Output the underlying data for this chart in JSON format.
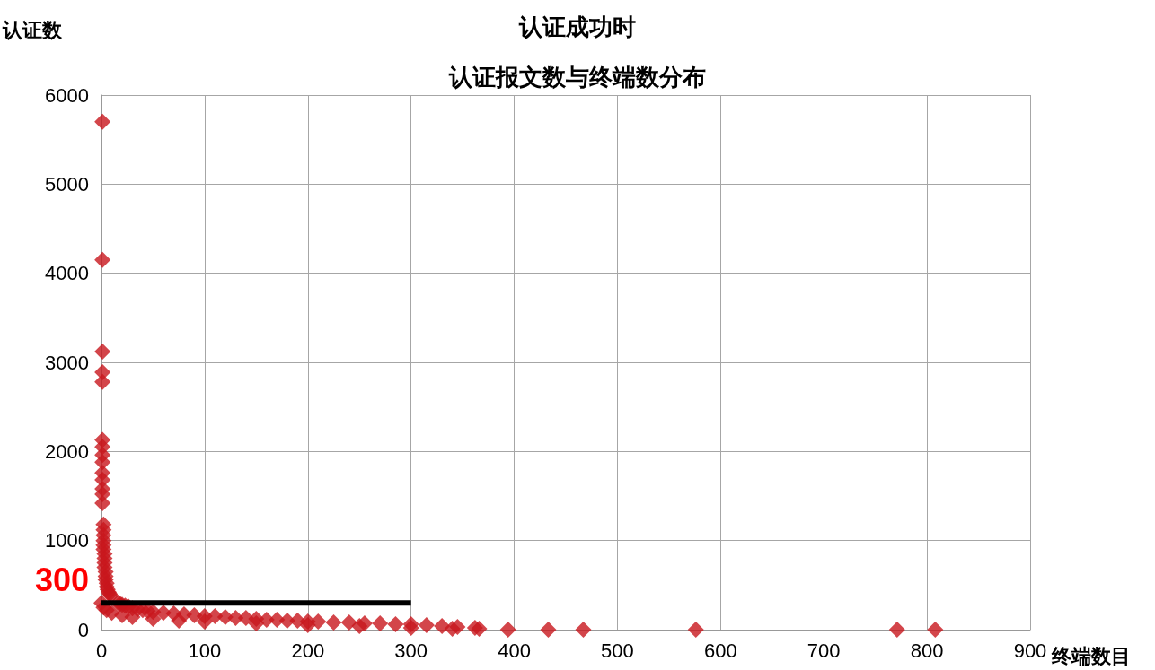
{
  "chart_data": {
    "type": "scatter",
    "title": "认证成功时",
    "subtitle": "认证报文数与终端数分布",
    "xlabel": "终端数目",
    "ylabel": "认证数",
    "xlim": [
      0,
      900
    ],
    "xticks": [
      0,
      100,
      200,
      300,
      400,
      500,
      600,
      700,
      800,
      900
    ],
    "ylim": [
      0,
      6000
    ],
    "yticks": [
      0,
      1000,
      2000,
      3000,
      4000,
      5000,
      6000
    ],
    "grid": true,
    "marker": "diamond",
    "series": [
      {
        "color": "#c8161d",
        "x": [
          1,
          1,
          1,
          1,
          1,
          1,
          1,
          1,
          1,
          1,
          1,
          1,
          1,
          1,
          2,
          2,
          2,
          2,
          2,
          2,
          3,
          3,
          3,
          3,
          4,
          4,
          4,
          5,
          5,
          6,
          7,
          8,
          9,
          16,
          18,
          20,
          23,
          26,
          30,
          35,
          40,
          45,
          50,
          60,
          70,
          80,
          90,
          100,
          110,
          120,
          130,
          140,
          150,
          160,
          170,
          180,
          190,
          200,
          210,
          225,
          240,
          255,
          270,
          285,
          300,
          315,
          330,
          345,
          362,
          366,
          394,
          433,
          467,
          576,
          771,
          808,
          0,
          2,
          5,
          10,
          20,
          30,
          50,
          75,
          100,
          150,
          200,
          250,
          300,
          340
        ],
        "values": [
          5700,
          4150,
          3120,
          2890,
          2780,
          2130,
          2050,
          1960,
          1880,
          1760,
          1680,
          1580,
          1520,
          1420,
          1180,
          1120,
          1060,
          1000,
          950,
          900,
          850,
          800,
          750,
          700,
          650,
          600,
          560,
          520,
          480,
          450,
          420,
          400,
          380,
          300,
          290,
          280,
          270,
          260,
          240,
          230,
          220,
          210,
          200,
          190,
          180,
          170,
          160,
          150,
          150,
          140,
          130,
          130,
          120,
          110,
          110,
          100,
          100,
          90,
          90,
          80,
          80,
          70,
          70,
          60,
          60,
          50,
          40,
          30,
          20,
          10,
          0,
          0,
          0,
          0,
          0,
          0,
          300,
          250,
          220,
          190,
          160,
          140,
          120,
          100,
          90,
          70,
          50,
          40,
          20,
          10
        ]
      },
      {
        "type": "line",
        "marker": "none",
        "color": "#000000",
        "x": [
          0,
          300
        ],
        "values": [
          300,
          300
        ]
      }
    ],
    "annotations": [
      {
        "text": "300",
        "x": 0,
        "y": 300
      }
    ]
  }
}
